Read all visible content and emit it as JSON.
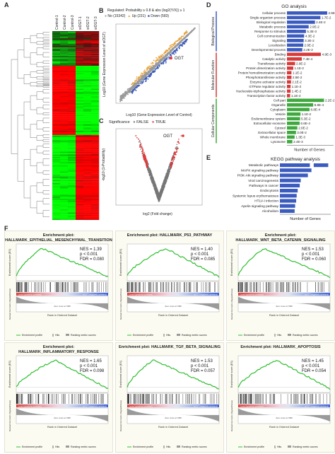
{
  "panel_labels": {
    "a": "A",
    "b": "B",
    "c": "C",
    "d": "D",
    "e": "E",
    "f": "F"
  },
  "heatmap": {
    "samples": [
      "Control-1",
      "Control-2",
      "Control-3",
      "siOGT-1",
      "siOGT-2",
      "siOGT-3"
    ]
  },
  "panel_b": {
    "title": "Regulated: Probability ≥ 0.8 & abs (log2(Y/X)) ≥ 1",
    "legend": [
      {
        "label": "No (15342)",
        "color": "#9a9a9a"
      },
      {
        "label": "Up (231)",
        "color": "#e8a33a"
      },
      {
        "label": "Down (583)",
        "color": "#3f5fb8"
      }
    ],
    "xlabel": "Log10 (Gene Expression Level of Control)",
    "ylabel": "Log10 (Gene Expression Level of siOGT)",
    "annotation": "OGT"
  },
  "panel_c": {
    "legend_title": "Significance",
    "legend": [
      {
        "label": "FALSE",
        "color": "#777777"
      },
      {
        "label": "TRUE",
        "color": "#e53030"
      }
    ],
    "xlabel": "log2 (Fold change)",
    "ylabel": "-log10 (1-Probability)",
    "annotation": "OGT"
  },
  "panel_d": {
    "title": "GO analysis",
    "xlabel": "Number of Genes",
    "groups": [
      {
        "name": "Biological Process",
        "color": "#3b5bbf"
      },
      {
        "name": "Molecular Function",
        "color": "#d63a3a"
      },
      {
        "name": "Cellular Components",
        "color": "#3fa83f"
      }
    ]
  },
  "panel_e": {
    "title": "KEGG pathway analysis",
    "xlabel": "Number of Genes"
  },
  "chart_data": [
    {
      "type": "bar",
      "id": "go",
      "categories": [
        "Cellular process",
        "Single-organism process",
        "Biological regulation",
        "Metabolic process",
        "Response to stimulus",
        "Cell communication",
        "Signaling",
        "Localization",
        "Developmental process",
        "Binding",
        "Catalytic activity",
        "Transferase activity",
        "Protein dimerization activity",
        "Protein homodimerization activity",
        "Phosphotransferase activity",
        "Enzyme activator activity",
        "GTPase regulator activity",
        "Nucleoside-triphosphatase activity",
        "Transcription factor activity",
        "Cell part",
        "Organelle",
        "Cytoplasm",
        "Vesicle",
        "Endomembrane system",
        "Extracellular exosome",
        "Cytosol",
        "Extracellular space",
        "Whole membrane",
        "Lysosome"
      ],
      "groups": [
        0,
        0,
        0,
        0,
        0,
        0,
        0,
        0,
        0,
        1,
        1,
        1,
        1,
        1,
        1,
        1,
        1,
        1,
        1,
        2,
        2,
        2,
        2,
        2,
        2,
        2,
        2,
        2,
        2
      ],
      "values": [
        0.89,
        0.74,
        0.62,
        0.48,
        0.42,
        0.38,
        0.37,
        0.36,
        0.34,
        0.75,
        0.33,
        0.18,
        0.14,
        0.1,
        0.1,
        0.09,
        0.08,
        0.08,
        0.07,
        0.82,
        0.58,
        0.5,
        0.3,
        0.29,
        0.28,
        0.23,
        0.2,
        0.17,
        0.12
      ],
      "labels": [
        "2.9E-2",
        "1.7E-2",
        "2.4E-2",
        "2.9E-2",
        "5.3E-3",
        "4.3E-2",
        "3.3E-2",
        "2.9E-2",
        "2.2E-2",
        "4.9E-3",
        "7.4E-4",
        "2.9E-2",
        "1.1E-2",
        "1.1E-2",
        "2.5E-2",
        "2.1E-2",
        "1.1E-2",
        "1.4E-2",
        "1.1E-2",
        "2.2E-2",
        "8.8E-4",
        "8.8E-4",
        "1.1E-2",
        "5.3E-2",
        "6.6E-4",
        "2.9E-2",
        "3.0E-2",
        "1.3E-3",
        "2.4E-3"
      ]
    },
    {
      "type": "bar",
      "id": "kegg",
      "categories": [
        "Metabolic pathways",
        "MAPK signaling pathway",
        "PI3K-Akt signaling pathway",
        "Viral carcinogenesis",
        "Pathways in cancer",
        "Endocytosis",
        "Systemic lupus erythematosus",
        "HTLV-I infection",
        "Apelin signaling pathway",
        "Alcoholism"
      ],
      "values": [
        0.95,
        0.62,
        0.55,
        0.41,
        0.39,
        0.35,
        0.33,
        0.32,
        0.3,
        0.29
      ]
    },
    {
      "type": "line",
      "id": "gsea",
      "xlabel": "Rank in Ordered Dataset",
      "ylabel": "Enrichment score (ES)"
    }
  ],
  "gsea": [
    {
      "title": "Enrichment plot:\nHALLMARK_EPITHELIAL_MESENCHYMAL_TRANSITION",
      "nes": "NES = 1.39",
      "p": "p < 0.001",
      "fdr": "FDR = 0.080",
      "shape": "early"
    },
    {
      "title": "Enrichment plot: HALLMARK_P53_PATHWAY",
      "nes": "NES = 1.40",
      "p": "p < 0.001",
      "fdr": "FDR = 0.085",
      "shape": "mid"
    },
    {
      "title": "Enrichment plot:\nHALLMARK_WNT_BETA_CATENIN_SIGNALING",
      "nes": "NES = 1.53",
      "p": "p < 0.001",
      "fdr": "FDR = 0.060",
      "shape": "early"
    },
    {
      "title": "Enrichment plot:\nHALLMARK_INFLAMMATORY_RESPONSE",
      "nes": "NES = 1.65",
      "p": "p < 0.001",
      "fdr": "FDR = 0.098",
      "shape": "mid"
    },
    {
      "title": "Enrichment plot: HALLMARK_TGF_BETA_SIGNALING",
      "nes": "NES = 1.53",
      "p": "p < 0.001",
      "fdr": "FDR = 0.057",
      "shape": "early"
    },
    {
      "title": "Enrichment plot: HALLMARK_APOPTOSIS",
      "nes": "NES = 1.45",
      "p": "p < 0.001",
      "fdr": "FDR = 0.054",
      "shape": "mid"
    }
  ],
  "gsea_legend": [
    "Enrichment profile",
    "Hits",
    "Ranking metric scores"
  ],
  "gsea_colors": {
    "profile": "#2fbf2f",
    "pos": "#d83a3a",
    "neg": "#3a5fd8"
  },
  "gsea_side_labels": {
    "pos": "Control (positively correlated)",
    "neg": "siOGT (negatively correlated)",
    "zero": "Zero cross at 7388",
    "ylabel2": "Ranked list metric (Signal2Noise)"
  }
}
